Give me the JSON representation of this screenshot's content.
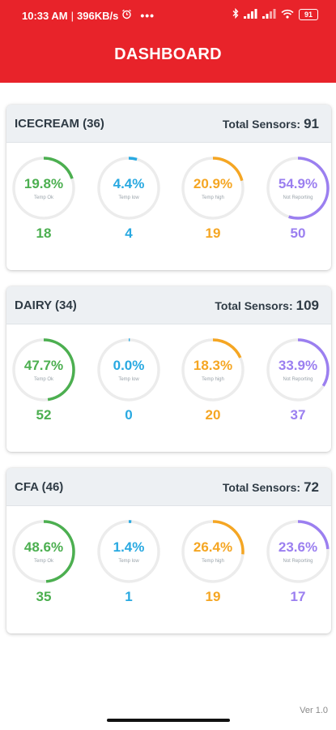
{
  "status_bar": {
    "time": "10:33 AM",
    "speed": "396KB/s",
    "battery": "91"
  },
  "header": {
    "title": "DASHBOARD"
  },
  "total_label": "Total Sensors:",
  "colors": {
    "ok": "#4caf50",
    "low": "#29a9e1",
    "high": "#f5a623",
    "not_reporting": "#9b7ff0",
    "track": "#ececec",
    "header": "#e8232a"
  },
  "cards": [
    {
      "name": "ICECREAM (36)",
      "total": "91",
      "gauges": [
        {
          "percent": 19.8,
          "label": "19.8%",
          "subtitle": "Temp Ok",
          "count": "18",
          "status": "ok"
        },
        {
          "percent": 4.4,
          "label": "4.4%",
          "subtitle": "Temp low",
          "count": "4",
          "status": "low"
        },
        {
          "percent": 20.9,
          "label": "20.9%",
          "subtitle": "Temp high",
          "count": "19",
          "status": "high"
        },
        {
          "percent": 54.9,
          "label": "54.9%",
          "subtitle": "Not Reporting",
          "count": "50",
          "status": "not_reporting"
        }
      ]
    },
    {
      "name": "DAIRY (34)",
      "total": "109",
      "gauges": [
        {
          "percent": 47.7,
          "label": "47.7%",
          "subtitle": "Temp Ok",
          "count": "52",
          "status": "ok"
        },
        {
          "percent": 0.0,
          "label": "0.0%",
          "subtitle": "Temp low",
          "count": "0",
          "status": "low"
        },
        {
          "percent": 18.3,
          "label": "18.3%",
          "subtitle": "Temp high",
          "count": "20",
          "status": "high"
        },
        {
          "percent": 33.9,
          "label": "33.9%",
          "subtitle": "Not Reporting",
          "count": "37",
          "status": "not_reporting"
        }
      ]
    },
    {
      "name": "CFA (46)",
      "total": "72",
      "gauges": [
        {
          "percent": 48.6,
          "label": "48.6%",
          "subtitle": "Temp Ok",
          "count": "35",
          "status": "ok"
        },
        {
          "percent": 1.4,
          "label": "1.4%",
          "subtitle": "Temp low",
          "count": "1",
          "status": "low"
        },
        {
          "percent": 26.4,
          "label": "26.4%",
          "subtitle": "Temp high",
          "count": "19",
          "status": "high"
        },
        {
          "percent": 23.6,
          "label": "23.6%",
          "subtitle": "Not Reporting",
          "count": "17",
          "status": "not_reporting"
        }
      ]
    }
  ],
  "footer": {
    "version": "Ver 1.0"
  }
}
